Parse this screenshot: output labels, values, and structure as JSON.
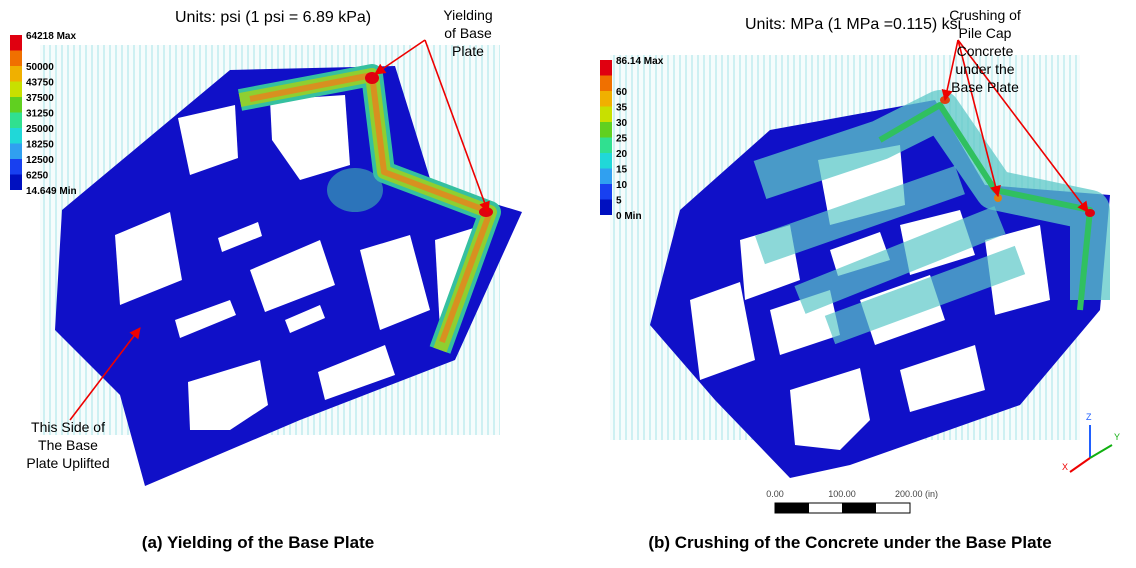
{
  "panels": [
    {
      "units": "Units: psi (1 psi = 6.89 kPa)",
      "legend": [
        "64218 Max",
        "50000",
        "43750",
        "37500",
        "31250",
        "25000",
        "18250",
        "12500",
        "6250",
        "14.649 Min"
      ],
      "annotations": [
        {
          "lines": [
            "Yielding",
            "of Base",
            "Plate"
          ]
        },
        {
          "lines": [
            "This Side of",
            "The Base",
            "Plate Uplifted"
          ]
        }
      ],
      "caption": "(a) Yielding of the Base Plate"
    },
    {
      "units": "Units: MPa (1 MPa =0.115) ksi",
      "legend": [
        "86.14 Max",
        "60",
        "35",
        "30",
        "25",
        "20",
        "15",
        "10",
        "5",
        "0 Min"
      ],
      "annotations": [
        {
          "lines": [
            "Crushing of",
            "Pile Cap",
            "Concrete",
            "under the",
            "Base Plate"
          ]
        }
      ],
      "scale_bar": [
        "0.00",
        "100.00",
        "200.00 (in)"
      ],
      "triad": [
        "Z",
        "X",
        "Y"
      ],
      "caption": "(b) Crushing of the Concrete under the Base Plate"
    }
  ]
}
